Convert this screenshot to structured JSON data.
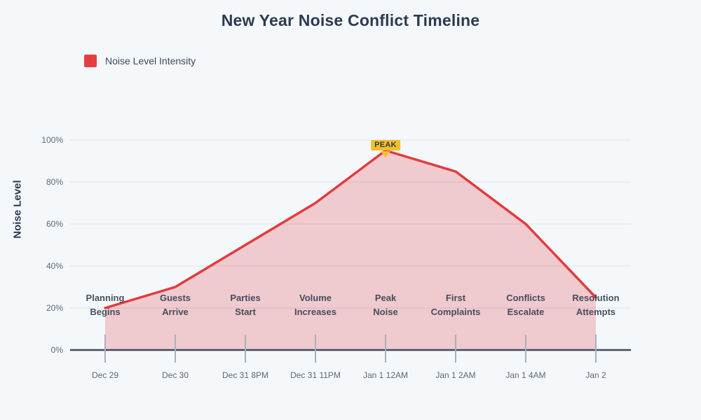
{
  "chart": {
    "title": "New Year Noise Conflict Timeline",
    "legend": {
      "label": "Noise Level Intensity",
      "color": "#e5403f"
    },
    "y_axis_title": "Noise Level"
  },
  "chart_data": {
    "type": "area",
    "title": "New Year Noise Conflict Timeline",
    "x": [
      "Dec 29",
      "Dec 30",
      "Dec 31 8PM",
      "Dec 31 11PM",
      "Jan 1 12AM",
      "Jan 1 2AM",
      "Jan 1 4AM",
      "Jan 2"
    ],
    "event_labels": [
      [
        "Planning",
        "Begins"
      ],
      [
        "Guests",
        "Arrive"
      ],
      [
        "Parties",
        "Start"
      ],
      [
        "Volume",
        "Increases"
      ],
      [
        "Peak",
        "Noise"
      ],
      [
        "First",
        "Complaints"
      ],
      [
        "Conflicts",
        "Escalate"
      ],
      [
        "Resolution",
        "Attempts"
      ]
    ],
    "series": [
      {
        "name": "Noise Level Intensity",
        "values": [
          20,
          30,
          50,
          70,
          95,
          85,
          60,
          25
        ]
      }
    ],
    "ylabel": "Noise Level",
    "y_ticks": [
      "0%",
      "20%",
      "40%",
      "60%",
      "80%",
      "100%"
    ],
    "ylim": [
      0,
      100
    ],
    "grid": true,
    "legend_position": "top-left",
    "annotations": [
      {
        "label": "PEAK",
        "x": "Jan 1 12AM",
        "y": 95,
        "color": "#f5bf2b"
      }
    ],
    "colors": {
      "line": "#e23b3e",
      "fill": "rgba(226,59,62,0.24)",
      "axis": "#3e4a5c",
      "gridline": "#e8edf1",
      "tick": "#a8b0ba"
    }
  }
}
